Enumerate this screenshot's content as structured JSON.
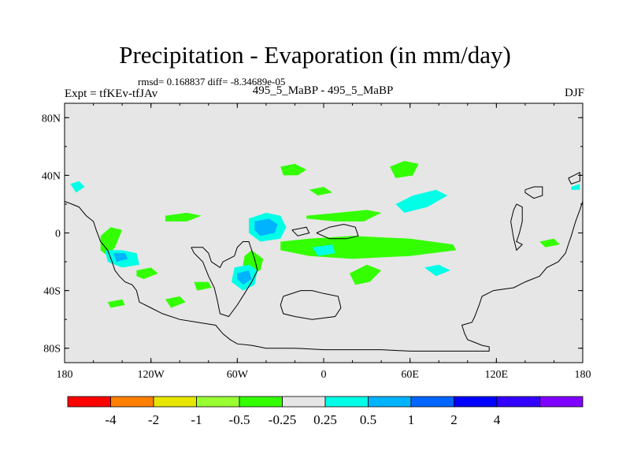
{
  "title": "Precipitation - Evaporation (in mm/day)",
  "stats": "rmsd= 0.168837  diff= -8.34689e-05",
  "left_label": "Expt = tfKEv-tfJAv",
  "center_label": "495_5_MaBP - 495_5_MaBP",
  "right_label": "DJF",
  "colors": {
    "land_background": "#e6e6e6",
    "coastline": "#000000"
  },
  "chart_data": {
    "type": "contour-map",
    "xlim": [
      -180,
      180
    ],
    "ylim": [
      -90,
      90
    ],
    "x_ticks": [
      {
        "value": -180,
        "label": "180"
      },
      {
        "value": -120,
        "label": "120W"
      },
      {
        "value": -60,
        "label": "60W"
      },
      {
        "value": 0,
        "label": "0"
      },
      {
        "value": 60,
        "label": "60E"
      },
      {
        "value": 120,
        "label": "120E"
      },
      {
        "value": 180,
        "label": "180"
      }
    ],
    "y_ticks": [
      {
        "value": 80,
        "label": "80N"
      },
      {
        "value": 40,
        "label": "40N"
      },
      {
        "value": 0,
        "label": "0"
      },
      {
        "value": -40,
        "label": "40S"
      },
      {
        "value": -80,
        "label": "80S"
      }
    ],
    "colorbar": {
      "colors": [
        "#ff0000",
        "#ff8000",
        "#e6e600",
        "#99ff33",
        "#33ff00",
        "#e6e6e6",
        "#00ffe6",
        "#00b3ff",
        "#0066ff",
        "#0000ff",
        "#3300ff",
        "#8000ff"
      ],
      "labels": [
        "-4",
        "-2",
        "-1",
        "-0.5",
        "-0.25",
        "0.25",
        "0.5",
        "1",
        "2",
        "4"
      ]
    },
    "coastlines": [
      [
        [
          -180,
          22
        ],
        [
          -175,
          20
        ],
        [
          -170,
          18
        ],
        [
          -165,
          12
        ],
        [
          -160,
          8
        ],
        [
          -158,
          2
        ],
        [
          -155,
          -6
        ],
        [
          -150,
          -12
        ],
        [
          -147,
          -20
        ],
        [
          -145,
          -26
        ],
        [
          -142,
          -30
        ],
        [
          -138,
          -34
        ],
        [
          -133,
          -36
        ],
        [
          -130,
          -40
        ],
        [
          -128,
          -48
        ],
        [
          -120,
          -52
        ],
        [
          -112,
          -56
        ],
        [
          -100,
          -60
        ],
        [
          -88,
          -62
        ],
        [
          -75,
          -64
        ],
        [
          -70,
          -70
        ],
        [
          -65,
          -74
        ],
        [
          -60,
          -77
        ],
        [
          -50,
          -78
        ],
        [
          -40,
          -80
        ],
        [
          -20,
          -80
        ],
        [
          0,
          -81
        ],
        [
          20,
          -81
        ],
        [
          40,
          -81
        ],
        [
          60,
          -82
        ],
        [
          80,
          -82
        ],
        [
          100,
          -82
        ],
        [
          115,
          -82
        ],
        [
          115,
          -79
        ],
        [
          110,
          -78
        ],
        [
          105,
          -76
        ],
        [
          100,
          -74
        ],
        [
          98,
          -70
        ],
        [
          96,
          -64
        ],
        [
          103,
          -62
        ],
        [
          105,
          -58
        ],
        [
          108,
          -50
        ],
        [
          110,
          -44
        ],
        [
          118,
          -40
        ],
        [
          125,
          -39
        ],
        [
          132,
          -38
        ],
        [
          140,
          -34
        ],
        [
          150,
          -30
        ],
        [
          155,
          -24
        ],
        [
          163,
          -20
        ],
        [
          168,
          -14
        ],
        [
          170,
          -8
        ],
        [
          172,
          -2
        ],
        [
          175,
          8
        ],
        [
          178,
          16
        ],
        [
          180,
          22
        ]
      ],
      [
        [
          -92,
          -10
        ],
        [
          -84,
          -10
        ],
        [
          -80,
          -14
        ],
        [
          -78,
          -20
        ],
        [
          -75,
          -22
        ],
        [
          -72,
          -24
        ],
        [
          -70,
          -20
        ],
        [
          -66,
          -18
        ],
        [
          -62,
          -16
        ],
        [
          -60,
          -10
        ],
        [
          -56,
          -6
        ],
        [
          -52,
          -6
        ],
        [
          -50,
          -12
        ],
        [
          -48,
          -18
        ],
        [
          -46,
          -26
        ],
        [
          -50,
          -34
        ],
        [
          -55,
          -42
        ],
        [
          -60,
          -50
        ],
        [
          -66,
          -58
        ],
        [
          -72,
          -56
        ],
        [
          -74,
          -46
        ],
        [
          -76,
          -38
        ],
        [
          -80,
          -30
        ],
        [
          -84,
          -20
        ],
        [
          -90,
          -14
        ],
        [
          -92,
          -10
        ]
      ],
      [
        [
          -28,
          -44
        ],
        [
          -16,
          -40
        ],
        [
          -8,
          -40
        ],
        [
          0,
          -42
        ],
        [
          10,
          -44
        ],
        [
          12,
          -52
        ],
        [
          8,
          -58
        ],
        [
          -8,
          -60
        ],
        [
          -20,
          -58
        ],
        [
          -28,
          -56
        ],
        [
          -30,
          -50
        ],
        [
          -28,
          -44
        ]
      ],
      [
        [
          -5,
          0
        ],
        [
          4,
          4
        ],
        [
          14,
          6
        ],
        [
          22,
          4
        ],
        [
          24,
          -2
        ],
        [
          16,
          -4
        ],
        [
          4,
          -4
        ],
        [
          -5,
          0
        ]
      ],
      [
        [
          -22,
          2
        ],
        [
          -12,
          4
        ],
        [
          -10,
          0
        ],
        [
          -18,
          -2
        ],
        [
          -22,
          2
        ]
      ],
      [
        [
          140,
          30
        ],
        [
          146,
          32
        ],
        [
          152,
          32
        ],
        [
          152,
          26
        ],
        [
          146,
          24
        ],
        [
          140,
          28
        ],
        [
          140,
          30
        ]
      ],
      [
        [
          134,
          20
        ],
        [
          138,
          18
        ],
        [
          138,
          8
        ],
        [
          136,
          0
        ],
        [
          134,
          -6
        ],
        [
          138,
          -8
        ],
        [
          134,
          -12
        ],
        [
          132,
          -4
        ],
        [
          130,
          8
        ],
        [
          132,
          16
        ],
        [
          134,
          20
        ]
      ],
      [
        [
          170,
          38
        ],
        [
          174,
          40
        ],
        [
          178,
          42
        ],
        [
          178,
          36
        ],
        [
          172,
          34
        ],
        [
          170,
          38
        ]
      ]
    ],
    "regions": [
      {
        "level": "-0.25",
        "color": "#33ff00",
        "pts": [
          [
            -55,
            -16
          ],
          [
            -50,
            -12
          ],
          [
            -42,
            -18
          ],
          [
            -44,
            -26
          ],
          [
            -52,
            -28
          ],
          [
            -56,
            -22
          ],
          [
            -55,
            -16
          ]
        ]
      },
      {
        "level": "-0.25",
        "color": "#33ff00",
        "pts": [
          [
            -30,
            -6
          ],
          [
            -10,
            -4
          ],
          [
            20,
            -2
          ],
          [
            60,
            -4
          ],
          [
            90,
            -8
          ],
          [
            92,
            -12
          ],
          [
            60,
            -16
          ],
          [
            20,
            -18
          ],
          [
            -10,
            -16
          ],
          [
            -30,
            -12
          ],
          [
            -30,
            -6
          ]
        ]
      },
      {
        "level": "-0.25",
        "color": "#33ff00",
        "pts": [
          [
            -12,
            12
          ],
          [
            10,
            14
          ],
          [
            30,
            16
          ],
          [
            40,
            14
          ],
          [
            28,
            8
          ],
          [
            8,
            8
          ],
          [
            -12,
            10
          ],
          [
            -12,
            12
          ]
        ]
      },
      {
        "level": "-0.25",
        "color": "#33ff00",
        "pts": [
          [
            -30,
            46
          ],
          [
            -20,
            48
          ],
          [
            -12,
            44
          ],
          [
            -18,
            40
          ],
          [
            -28,
            40
          ],
          [
            -30,
            46
          ]
        ]
      },
      {
        "level": "-0.25",
        "color": "#33ff00",
        "pts": [
          [
            46,
            46
          ],
          [
            56,
            50
          ],
          [
            66,
            48
          ],
          [
            62,
            40
          ],
          [
            50,
            38
          ],
          [
            46,
            46
          ]
        ]
      },
      {
        "level": "-0.25",
        "color": "#33ff00",
        "pts": [
          [
            -110,
            12
          ],
          [
            -95,
            14
          ],
          [
            -85,
            12
          ],
          [
            -95,
            8
          ],
          [
            -110,
            8
          ],
          [
            -110,
            12
          ]
        ]
      },
      {
        "level": "-0.25",
        "color": "#33ff00",
        "pts": [
          [
            -155,
            -2
          ],
          [
            -148,
            4
          ],
          [
            -140,
            2
          ],
          [
            -145,
            -10
          ],
          [
            -150,
            -16
          ],
          [
            -155,
            -12
          ],
          [
            -155,
            -2
          ]
        ]
      },
      {
        "level": "-0.25",
        "color": "#33ff00",
        "pts": [
          [
            -130,
            -26
          ],
          [
            -120,
            -24
          ],
          [
            -115,
            -28
          ],
          [
            -125,
            -32
          ],
          [
            -130,
            -30
          ],
          [
            -130,
            -26
          ]
        ]
      },
      {
        "level": "-0.25",
        "color": "#33ff00",
        "pts": [
          [
            -90,
            -34
          ],
          [
            -80,
            -34
          ],
          [
            -78,
            -38
          ],
          [
            -88,
            -40
          ],
          [
            -90,
            -34
          ]
        ]
      },
      {
        "level": "-0.25",
        "color": "#33ff00",
        "pts": [
          [
            18,
            -28
          ],
          [
            30,
            -22
          ],
          [
            40,
            -26
          ],
          [
            32,
            -34
          ],
          [
            22,
            -36
          ],
          [
            18,
            -28
          ]
        ]
      },
      {
        "level": "-0.25",
        "color": "#33ff00",
        "pts": [
          [
            150,
            -6
          ],
          [
            160,
            -4
          ],
          [
            164,
            -8
          ],
          [
            154,
            -10
          ],
          [
            150,
            -6
          ]
        ]
      },
      {
        "level": "-0.25",
        "color": "#33ff00",
        "pts": [
          [
            -110,
            -46
          ],
          [
            -100,
            -44
          ],
          [
            -96,
            -48
          ],
          [
            -106,
            -52
          ],
          [
            -110,
            -46
          ]
        ]
      },
      {
        "level": "-0.25",
        "color": "#33ff00",
        "pts": [
          [
            -150,
            -48
          ],
          [
            -140,
            -46
          ],
          [
            -138,
            -50
          ],
          [
            -148,
            -52
          ],
          [
            -150,
            -48
          ]
        ]
      },
      {
        "level": "-0.25",
        "color": "#33ff00",
        "pts": [
          [
            -10,
            30
          ],
          [
            0,
            32
          ],
          [
            6,
            28
          ],
          [
            -4,
            26
          ],
          [
            -10,
            30
          ]
        ]
      },
      {
        "level": "0.25",
        "color": "#00ffe6",
        "pts": [
          [
            -52,
            10
          ],
          [
            -40,
            14
          ],
          [
            -30,
            12
          ],
          [
            -26,
            4
          ],
          [
            -30,
            -4
          ],
          [
            -44,
            -6
          ],
          [
            -52,
            0
          ],
          [
            -52,
            10
          ]
        ]
      },
      {
        "level": "0.25",
        "color": "#00ffe6",
        "pts": [
          [
            -152,
            -12
          ],
          [
            -140,
            -12
          ],
          [
            -130,
            -14
          ],
          [
            -128,
            -22
          ],
          [
            -140,
            -24
          ],
          [
            -150,
            -20
          ],
          [
            -152,
            -12
          ]
        ]
      },
      {
        "level": "0.25",
        "color": "#00ffe6",
        "pts": [
          [
            -62,
            -24
          ],
          [
            -52,
            -22
          ],
          [
            -46,
            -26
          ],
          [
            -48,
            -36
          ],
          [
            -56,
            -40
          ],
          [
            -64,
            -34
          ],
          [
            -62,
            -24
          ]
        ]
      },
      {
        "level": "0.25",
        "color": "#00ffe6",
        "pts": [
          [
            50,
            20
          ],
          [
            62,
            26
          ],
          [
            78,
            30
          ],
          [
            86,
            26
          ],
          [
            72,
            18
          ],
          [
            56,
            14
          ],
          [
            50,
            20
          ]
        ]
      },
      {
        "level": "0.25",
        "color": "#00ffe6",
        "pts": [
          [
            -176,
            34
          ],
          [
            -170,
            36
          ],
          [
            -166,
            32
          ],
          [
            -172,
            28
          ],
          [
            -176,
            34
          ]
        ]
      },
      {
        "level": "0.25",
        "color": "#00ffe6",
        "pts": [
          [
            70,
            -24
          ],
          [
            80,
            -22
          ],
          [
            88,
            -26
          ],
          [
            78,
            -30
          ],
          [
            70,
            -24
          ]
        ]
      },
      {
        "level": "0.25",
        "color": "#00ffe6",
        "pts": [
          [
            -8,
            -10
          ],
          [
            6,
            -8
          ],
          [
            8,
            -14
          ],
          [
            -4,
            -16
          ],
          [
            -8,
            -10
          ]
        ]
      },
      {
        "level": "0.25",
        "color": "#00ffe6",
        "pts": [
          [
            172,
            32
          ],
          [
            178,
            34
          ],
          [
            178,
            30
          ],
          [
            172,
            30
          ],
          [
            172,
            32
          ]
        ]
      },
      {
        "level": "0.5",
        "color": "#00b3ff",
        "pts": [
          [
            -48,
            8
          ],
          [
            -38,
            10
          ],
          [
            -32,
            6
          ],
          [
            -34,
            0
          ],
          [
            -44,
            -2
          ],
          [
            -48,
            2
          ],
          [
            -48,
            8
          ]
        ]
      },
      {
        "level": "0.5",
        "color": "#00b3ff",
        "pts": [
          [
            -60,
            -28
          ],
          [
            -52,
            -26
          ],
          [
            -50,
            -32
          ],
          [
            -56,
            -36
          ],
          [
            -60,
            -32
          ],
          [
            -60,
            -28
          ]
        ]
      },
      {
        "level": "0.5",
        "color": "#00b3ff",
        "pts": [
          [
            -146,
            -14
          ],
          [
            -138,
            -14
          ],
          [
            -136,
            -18
          ],
          [
            -144,
            -20
          ],
          [
            -146,
            -14
          ]
        ]
      }
    ]
  }
}
